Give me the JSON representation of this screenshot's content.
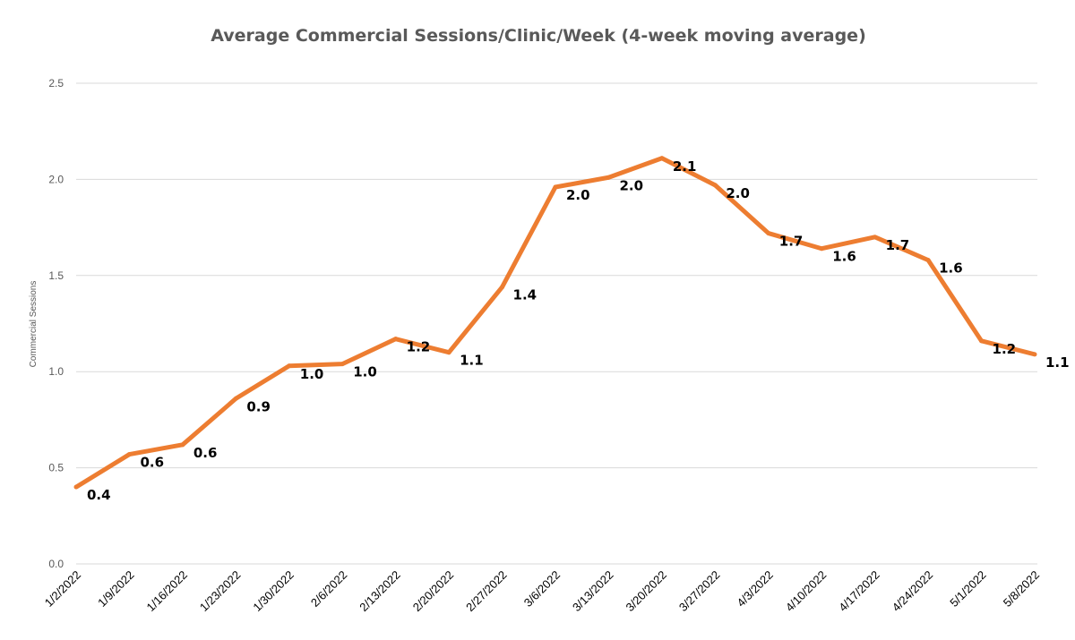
{
  "chart_data": {
    "type": "line",
    "title": "Average Commercial Sessions/Clinic/Week (4-week moving average)",
    "xlabel": "",
    "ylabel": "Commercial Sessions",
    "ylim": [
      0,
      2.5
    ],
    "yticks": [
      "0.0",
      "0.5",
      "1.0",
      "1.5",
      "2.0",
      "2.5"
    ],
    "grid": true,
    "legend": "none",
    "categories": [
      "1/2/2022",
      "1/9/2022",
      "1/16/2022",
      "1/23/2022",
      "1/30/2022",
      "2/6/2022",
      "2/13/2022",
      "2/20/2022",
      "2/27/2022",
      "3/6/2022",
      "3/13/2022",
      "3/20/2022",
      "3/27/2022",
      "4/3/2022",
      "4/10/2022",
      "4/17/2022",
      "4/24/2022",
      "5/1/2022",
      "5/8/2022"
    ],
    "series": [
      {
        "color": "#ED7D31",
        "values": [
          0.4,
          0.57,
          0.62,
          0.86,
          1.03,
          1.04,
          1.17,
          1.1,
          1.44,
          1.96,
          2.01,
          2.11,
          1.97,
          1.72,
          1.64,
          1.7,
          1.58,
          1.16,
          1.09
        ],
        "data_labels": [
          "0.4",
          "0.6",
          "0.6",
          "0.9",
          "1.0",
          "1.0",
          "1.2",
          "1.1",
          "1.4",
          "2.0",
          "2.0",
          "2.1",
          "2.0",
          "1.7",
          "1.6",
          "1.7",
          "1.6",
          "1.2",
          "1.1"
        ]
      }
    ]
  }
}
